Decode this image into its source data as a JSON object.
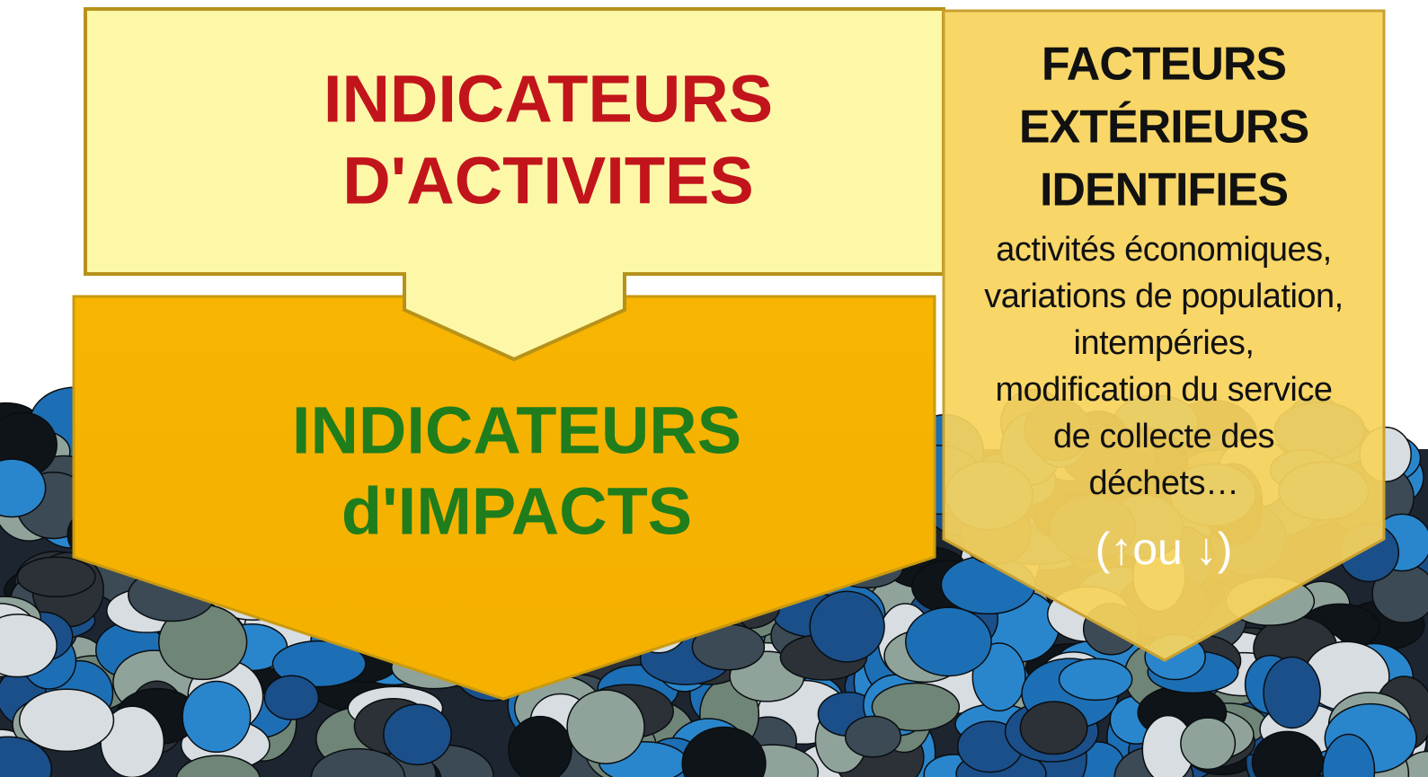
{
  "top_box": {
    "lines": [
      "INDICATEURS",
      "D'ACTIVITES"
    ]
  },
  "bottom_arrow": {
    "lines": [
      "INDICATEURS",
      "d'IMPACTS"
    ]
  },
  "side_box": {
    "title_lines": [
      "FACTEURS",
      "EXTÉRIEURS",
      "IDENTIFIES"
    ],
    "body_lines": [
      "activités économiques,",
      "variations de population,",
      "intempéries,",
      "modification du service",
      "de collecte des",
      "déchets…"
    ],
    "footer": "(↑ou ↓)"
  }
}
